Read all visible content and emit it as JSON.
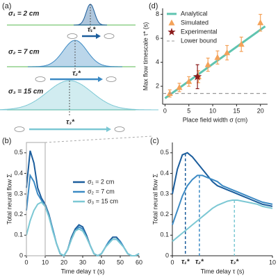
{
  "illustration": {
    "panel_label": "(a)",
    "fields": [
      {
        "label": "σ₁ = 2 cm",
        "tau": "τ₁*"
      },
      {
        "label": "σ₂ = 7 cm",
        "tau": "τ₂*"
      },
      {
        "label": "σ₃ = 15 cm",
        "tau": "τ₃*"
      }
    ]
  },
  "chart_data": [
    {
      "type": "line",
      "panel_label": "(b)",
      "xlabel": "Time delay τ (s)",
      "ylabel": "Total neural flow Σ",
      "x": [
        0,
        2,
        4,
        6,
        8,
        10,
        12,
        14,
        16,
        18,
        20,
        22,
        24,
        26,
        28,
        30,
        32,
        34,
        36,
        38,
        40,
        42,
        44,
        46,
        48,
        50,
        52,
        54,
        56,
        58,
        60
      ],
      "series": [
        {
          "name": "σ₁ = 2 cm",
          "color": "#1b5d9c",
          "values": [
            0.33,
            0.51,
            0.45,
            0.33,
            0.28,
            0.25,
            0.2,
            0.13,
            0.06,
            0.01,
            0,
            0.03,
            0.09,
            0.13,
            0.15,
            0.14,
            0.1,
            0.05,
            0.01,
            0,
            0.01,
            0.04,
            0.07,
            0.09,
            0.09,
            0.07,
            0.04,
            0.01,
            0,
            0,
            0.01
          ]
        },
        {
          "name": "σ₂ = 7 cm",
          "color": "#3c8ac4",
          "values": [
            0.22,
            0.39,
            0.36,
            0.3,
            0.27,
            0.24,
            0.19,
            0.13,
            0.06,
            0.01,
            0,
            0.03,
            0.08,
            0.12,
            0.14,
            0.13,
            0.09,
            0.05,
            0.01,
            0,
            0.01,
            0.04,
            0.07,
            0.08,
            0.08,
            0.07,
            0.04,
            0.01,
            0,
            0,
            0.01
          ]
        },
        {
          "name": "σ₃ = 15 cm",
          "color": "#7cc8d4",
          "values": [
            0.1,
            0.17,
            0.22,
            0.25,
            0.26,
            0.24,
            0.19,
            0.12,
            0.06,
            0.01,
            0,
            0.03,
            0.08,
            0.12,
            0.13,
            0.12,
            0.09,
            0.05,
            0.01,
            0,
            0.01,
            0.04,
            0.06,
            0.08,
            0.08,
            0.06,
            0.04,
            0.01,
            0,
            0,
            0.01
          ]
        }
      ],
      "xlim": [
        0,
        60
      ],
      "ylim": [
        0,
        0.55
      ],
      "xticks": [
        0,
        10,
        20,
        30,
        40,
        50,
        60
      ],
      "yticks": [
        0,
        0.1,
        0.2,
        0.3,
        0.4,
        0.5
      ]
    },
    {
      "type": "line",
      "panel_label": "(c)",
      "xlabel": "Time delay τ (s)",
      "ylabel": "Total neural flow Σ",
      "x": [
        0,
        0.5,
        1,
        1.5,
        2,
        2.5,
        3,
        3.5,
        4,
        4.5,
        5,
        5.5,
        6,
        6.5,
        7,
        7.5,
        8,
        8.5,
        9,
        9.5,
        10
      ],
      "series": [
        {
          "color": "#1b5d9c",
          "values": [
            0.3,
            0.42,
            0.49,
            0.5,
            0.48,
            0.45,
            0.42,
            0.39,
            0.36,
            0.34,
            0.33,
            0.32,
            0.31,
            0.3,
            0.29,
            0.28,
            0.27,
            0.26,
            0.25,
            0.245,
            0.24
          ],
          "peak": {
            "x": 1.3,
            "label": "τ₁*"
          }
        },
        {
          "color": "#3c8ac4",
          "values": [
            0.15,
            0.22,
            0.29,
            0.34,
            0.37,
            0.39,
            0.39,
            0.38,
            0.37,
            0.36,
            0.34,
            0.33,
            0.32,
            0.31,
            0.3,
            0.29,
            0.28,
            0.27,
            0.26,
            0.255,
            0.25
          ],
          "peak": {
            "x": 2.7,
            "label": "τ₂*"
          }
        },
        {
          "color": "#7cc8d4",
          "values": [
            0.07,
            0.09,
            0.11,
            0.13,
            0.15,
            0.17,
            0.19,
            0.21,
            0.23,
            0.245,
            0.255,
            0.265,
            0.27,
            0.27,
            0.265,
            0.26,
            0.255,
            0.25,
            0.24,
            0.235,
            0.23
          ],
          "peak": {
            "x": 6.2,
            "label": "τ₃*"
          }
        }
      ],
      "xlim": [
        0,
        10
      ],
      "ylim": [
        0,
        0.55
      ],
      "xticks": [
        0,
        10
      ],
      "yticks": [
        0,
        0.1,
        0.2,
        0.3,
        0.4,
        0.5
      ]
    },
    {
      "type": "scatter",
      "panel_label": "(d)",
      "xlabel": "Place field width σ (cm)",
      "ylabel": "Max flow timescale τ* (s)",
      "series": [
        {
          "name": "Analytical",
          "kind": "line",
          "color": "#5fc4b0",
          "x": [
            0,
            21
          ],
          "values": [
            1.0,
            7.0
          ]
        },
        {
          "name": "Simulated",
          "kind": "triangle",
          "color": "#f4a259",
          "x": [
            1,
            3,
            5,
            7,
            9,
            11,
            13,
            16,
            20
          ],
          "values": [
            1.4,
            1.9,
            2.4,
            2.8,
            3.8,
            4.4,
            4.8,
            5.5,
            7.3
          ],
          "errors": [
            0.3,
            0.35,
            0.4,
            0.5,
            0.55,
            0.55,
            0.6,
            0.6,
            0.7
          ]
        },
        {
          "name": "Experimental",
          "kind": "star",
          "color": "#8b1a1a",
          "x": [
            6.8
          ],
          "values": [
            2.8
          ],
          "errors": [
            1.0
          ]
        },
        {
          "name": "Lower bound",
          "kind": "hline",
          "color": "#999999",
          "values": [
            1.4
          ]
        }
      ],
      "xlim": [
        -0.5,
        21.5
      ],
      "ylim": [
        0.5,
        8.5
      ],
      "xticks": [
        0,
        5,
        10,
        15,
        20
      ],
      "yticks": [
        2,
        4,
        6,
        8
      ]
    }
  ]
}
